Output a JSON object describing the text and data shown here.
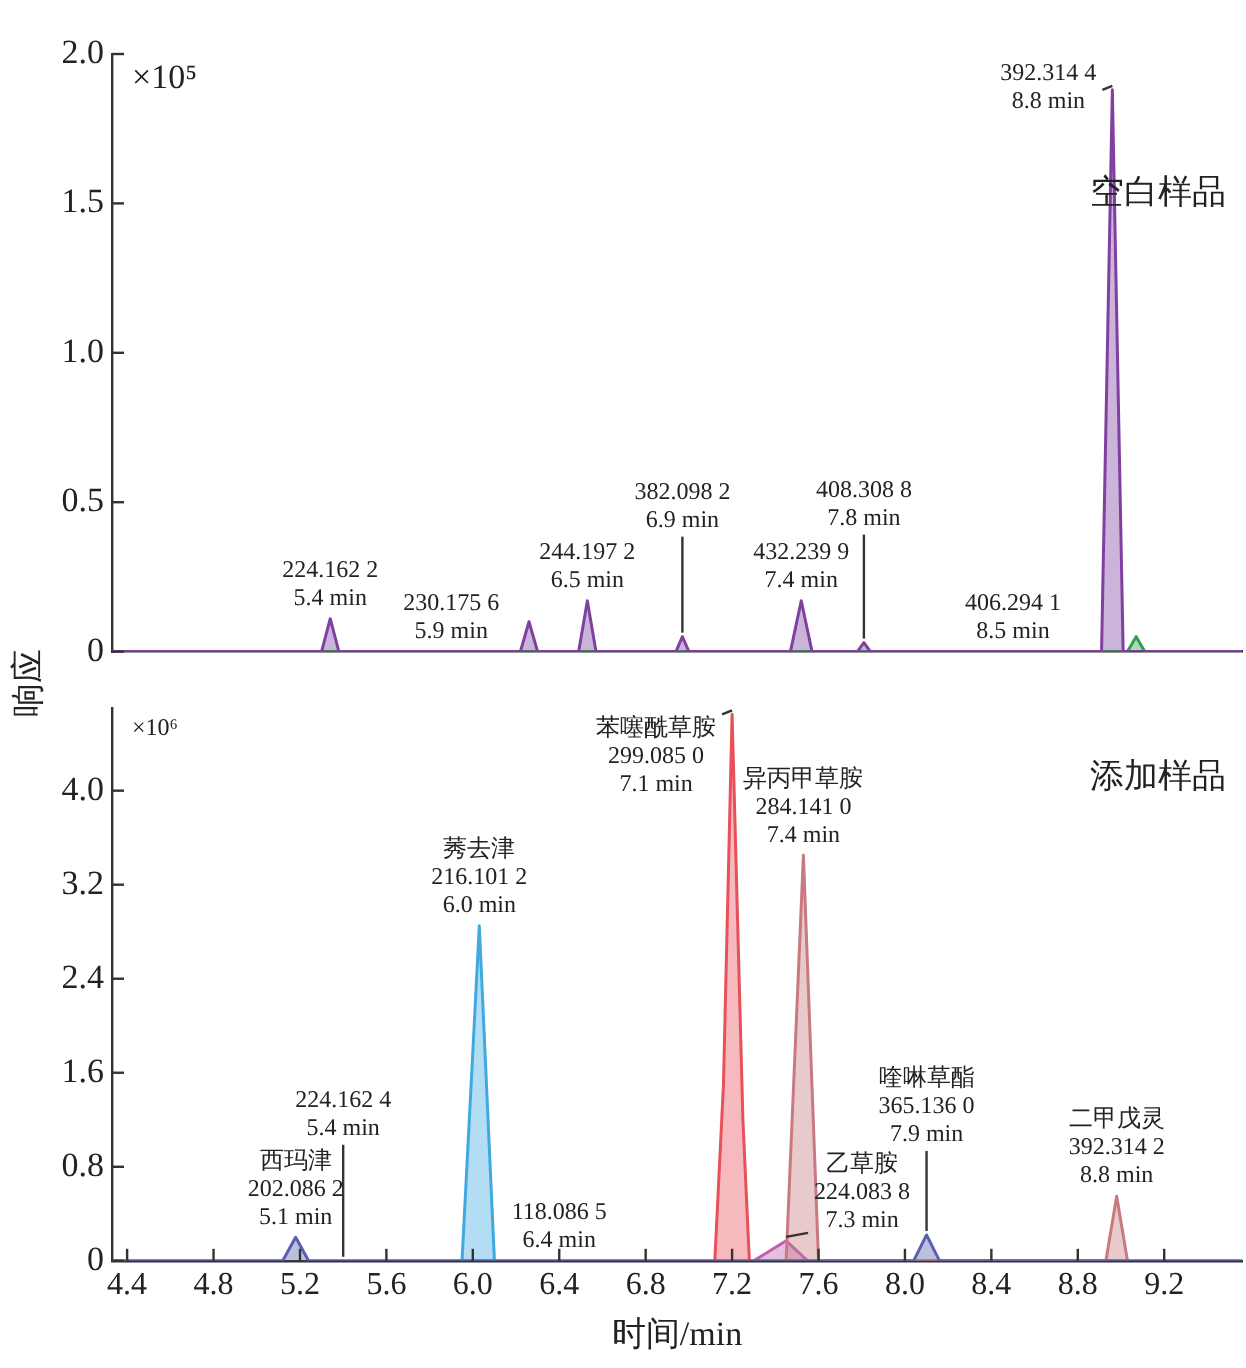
{
  "chart_data": [
    {
      "type": "area",
      "title": "空白样品",
      "ylabel": "响应",
      "xlim": [
        4.33,
        9.56
      ],
      "ylim": [
        0,
        2.0
      ],
      "yticks": [
        0,
        {
          "value": 0.5,
          "label": "0.5"
        },
        {
          "value": 1,
          "label": "1.0"
        },
        {
          "value": 1.5,
          "label": "1.5"
        },
        {
          "value": 2,
          "label": "2.0"
        }
      ],
      "tick_labels": "y",
      "grid": false,
      "legend": false,
      "series": [
        {
          "color": "#8040a0",
          "x": [
            4.33,
            5.3,
            5.34,
            5.38,
            6.22,
            6.26,
            6.3,
            6.49,
            6.53,
            6.57,
            6.94,
            6.97,
            7.0,
            7.47,
            7.52,
            7.57,
            7.78,
            7.81,
            7.84,
            8.91,
            8.96,
            9.01,
            9.56
          ],
          "values": [
            0,
            0,
            0.11,
            0,
            0,
            0.1,
            0,
            0,
            0.17,
            0,
            0,
            0.05,
            0,
            0,
            0.17,
            0,
            0,
            0.03,
            0,
            0,
            1.88,
            0,
            0
          ]
        },
        {
          "color": "#30a050",
          "x": [
            4.33,
            9.03,
            9.07,
            9.11,
            9.56
          ],
          "values": [
            0,
            0,
            0.05,
            0,
            0
          ]
        }
      ],
      "annotations": [
        "×10⁵",
        {
          "text": "224.162 2\n5.4 min",
          "x": 5.34,
          "y": 0.11
        },
        {
          "text": "230.175 6\n5.9 min",
          "x": 5.9,
          "y": 0
        },
        {
          "text": "244.197 2\n6.5 min",
          "x": 6.53,
          "y": 0.17
        },
        {
          "text": "382.098 2\n6.9 min",
          "x": 6.97,
          "y": 0.05
        },
        {
          "text": "432.239 9\n7.4 min",
          "x": 7.52,
          "y": 0.17
        },
        {
          "text": "408.308 8\n7.8 min",
          "x": 7.81,
          "y": 0.03
        },
        {
          "text": "406.294 1\n8.5 min",
          "x": 8.5,
          "y": 0
        },
        {
          "text": "392.314 4\n8.8 min",
          "x": 8.96,
          "y": 1.88
        }
      ]
    },
    {
      "type": "area",
      "title": "添加样品",
      "xlabel": "时间/min",
      "xlim": [
        4.33,
        9.56
      ],
      "xticks": [
        4.4,
        4.8,
        5.2,
        5.6,
        {
          "value": 6,
          "label": "6.0"
        },
        6.4,
        6.8,
        7.2,
        7.6,
        {
          "value": 8,
          "label": "8.0"
        },
        8.4,
        8.8,
        9.2
      ],
      "ylim": [
        0,
        4.7
      ],
      "yticks": [
        0,
        0.8,
        1.6,
        2.4,
        3.2,
        {
          "value": 4,
          "label": "4.0"
        }
      ],
      "grid": false,
      "legend": false,
      "series": [
        {
          "color": "#5a5fb0",
          "x": [
            4.33,
            5.12,
            5.18,
            5.24,
            8.04,
            8.1,
            8.16,
            9.56
          ],
          "values": [
            0,
            0,
            0.2,
            0,
            0,
            0.22,
            0,
            0
          ]
        },
        {
          "color": "#3fa9e0",
          "x": [
            5.95,
            6.03,
            6.1
          ],
          "values": [
            0,
            2.85,
            0
          ]
        },
        {
          "color": "#e8505a",
          "x": [
            7.12,
            7.16,
            7.2,
            7.25,
            7.28
          ],
          "values": [
            0,
            1.5,
            4.65,
            1.2,
            0
          ]
        },
        {
          "color": "#c87a80",
          "x": [
            7.45,
            7.53,
            7.6,
            8.93,
            8.98,
            9.03
          ],
          "values": [
            0,
            3.45,
            0,
            0,
            0.55,
            0
          ]
        },
        {
          "color": "#c060b0",
          "x": [
            7.3,
            7.45,
            7.55
          ],
          "values": [
            0,
            0.17,
            0
          ]
        }
      ],
      "annotations": [
        "×10⁶",
        {
          "text": "西玛津\n202.086 2\n5.1 min",
          "x": 5.18,
          "y": 0.2
        },
        {
          "text": "224.162 4\n5.4 min",
          "x": 5.4,
          "y": 0
        },
        {
          "text": "莠去津\n216.101 2\n6.0 min",
          "x": 6.03,
          "y": 2.85
        },
        {
          "text": "118.086 5\n6.4 min",
          "x": 6.4,
          "y": 0
        },
        {
          "text": "苯噻酰草胺\n299.085 0\n7.1 min",
          "x": 7.2,
          "y": 4.65
        },
        {
          "text": "异丙甲草胺\n284.141 0\n7.4 min",
          "x": 7.53,
          "y": 3.45
        },
        {
          "text": "乙草胺\n224.083 8\n7.3 min",
          "x": 7.45,
          "y": 0.17
        },
        {
          "text": "喹啉草酯\n365.136 0\n7.9 min",
          "x": 8.1,
          "y": 0.22
        },
        {
          "text": "二甲戊灵\n392.314 2\n8.8 min",
          "x": 8.98,
          "y": 0.55
        }
      ]
    }
  ]
}
